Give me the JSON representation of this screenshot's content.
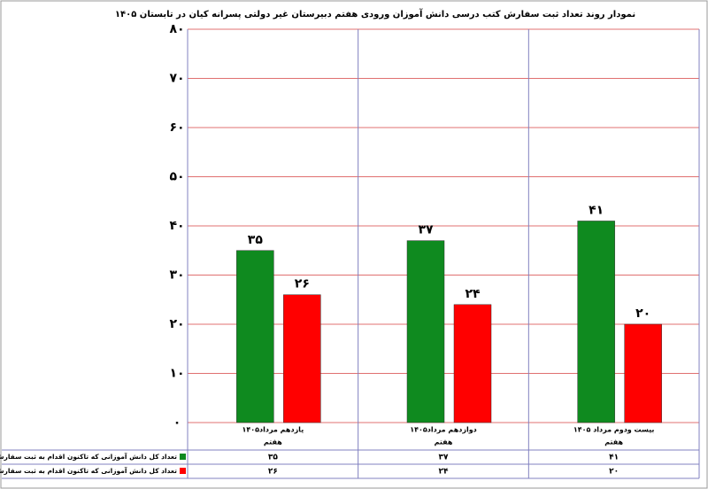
{
  "chart_data": {
    "type": "bar",
    "title": "نمودار روند تعداد ثبت سفارش کتب درسی دانش آموزان ورودی هفتم دبیرستان غیر دولتی پسرانه کیان در تابستان ۱۴۰۵",
    "categories": [
      "یازدهم مرداد۱۴۰۵",
      "دوازدهم مرداد۱۴۰۵",
      "بیست ودوم مرداد ۱۴۰۵"
    ],
    "subcategories": [
      "هفتم",
      "هفتم",
      "هفتم"
    ],
    "series": [
      {
        "name": "تعداد کل دانش آموزانی که تاکنون اقدام به ثبت سفارش کتاب درسی نموده اند.",
        "color": "#0f8a1f",
        "values": [
          35,
          37,
          41
        ],
        "value_labels": [
          "۳۵",
          "۳۷",
          "۴۱"
        ]
      },
      {
        "name": "تعداد کل دانش آموزانی که تاکنون اقدام به ثبت سفارش کتاب درسی ننموده اند.",
        "color": "#ff0000",
        "values": [
          26,
          24,
          20
        ],
        "value_labels": [
          "۲۶",
          "۲۴",
          "۲۰"
        ]
      }
    ],
    "ylim": [
      0,
      80
    ],
    "yticks": [
      {
        "value": 0,
        "label": "۰"
      },
      {
        "value": 10,
        "label": "۱۰"
      },
      {
        "value": 20,
        "label": "۲۰"
      },
      {
        "value": 30,
        "label": "۳۰"
      },
      {
        "value": 40,
        "label": "۴۰"
      },
      {
        "value": 50,
        "label": "۵۰"
      },
      {
        "value": 60,
        "label": "۶۰"
      },
      {
        "value": 70,
        "label": "۷۰"
      },
      {
        "value": 80,
        "label": "۸۰"
      }
    ],
    "grid": true
  }
}
